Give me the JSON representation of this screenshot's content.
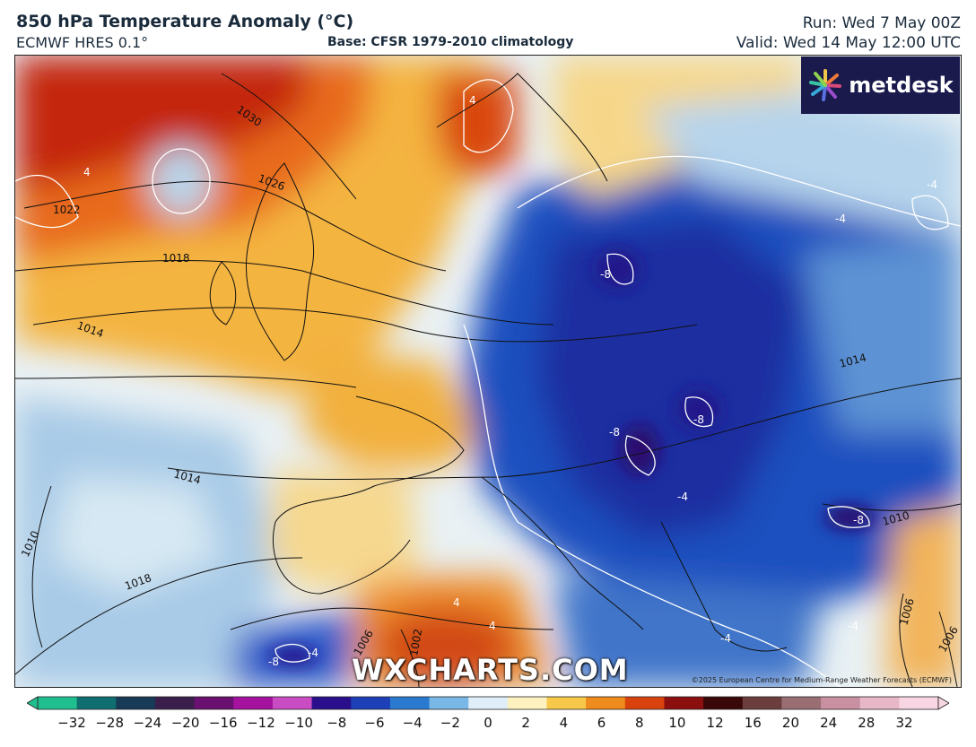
{
  "header": {
    "title": "850 hPa Temperature Anomaly (°C)",
    "model": "ECMWF HRES 0.1°",
    "base": "Base: CFSR 1979-2010 climatology",
    "run": "Run: Wed 7 May 00Z",
    "valid": "Valid: Wed 14 May 12:00 UTC"
  },
  "logo": {
    "text": "metdesk",
    "background": "#1b1a4d"
  },
  "watermark": "WXCHARTS.COM",
  "copyright": "©2025 European Centre for Medium-Range Weather Forecasts (ECMWF)",
  "map_labels": {
    "isobars": [
      "1030",
      "1026",
      "1022",
      "1018",
      "1014",
      "1014",
      "1014",
      "1010",
      "1018",
      "1010",
      "1006",
      "1006",
      "1002",
      "1006"
    ],
    "anomaly_contours": [
      "4",
      "4",
      "-4",
      "-4",
      "-8",
      "-8",
      "-8",
      "-8",
      "-4",
      "4",
      "4",
      "-4",
      "-8",
      "-4",
      "-4"
    ]
  },
  "colorbar": {
    "ticks": [
      "−32",
      "−28",
      "−24",
      "−20",
      "−16",
      "−12",
      "−10",
      "−8",
      "−6",
      "−4",
      "−2",
      "0",
      "2",
      "4",
      "6",
      "8",
      "10",
      "12",
      "16",
      "20",
      "24",
      "28",
      "32"
    ],
    "colors": [
      "#1fbf8f",
      "#0f6f70",
      "#173a56",
      "#3a1f4d",
      "#6a1070",
      "#a4129e",
      "#c94cc3",
      "#2a0f8c",
      "#1d3fb8",
      "#2a7ad0",
      "#78b7e6",
      "#dfeef8",
      "#fdf1c0",
      "#f7c84a",
      "#ef8a1c",
      "#d9420d",
      "#8c0f0f",
      "#3a0808",
      "#6b3d3d",
      "#9a6f74",
      "#c890a0",
      "#e8b7c8",
      "#f7d5e2"
    ]
  },
  "colors": {
    "cold_core": "#23128a",
    "cold": "#1f4fbf",
    "cool": "#7ab3df",
    "neutral": "#eef5f8",
    "warm": "#f5c65a",
    "hot": "#e45d17",
    "very_hot": "#b51d0c"
  }
}
